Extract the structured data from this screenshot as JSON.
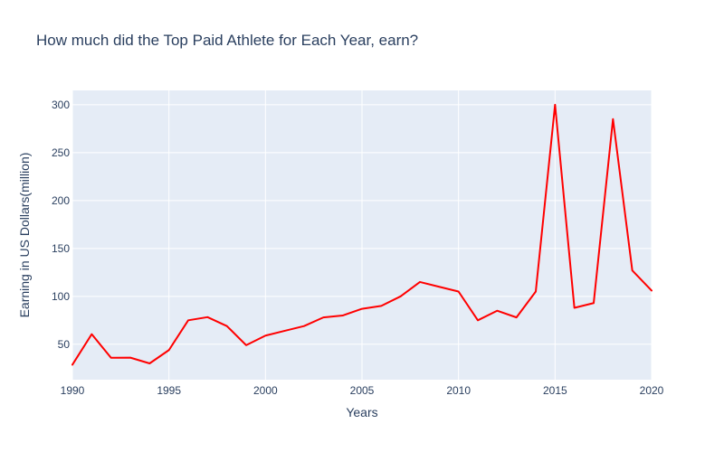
{
  "chart_data": {
    "type": "line",
    "title": "How much did the Top Paid Athlete for Each Year, earn?",
    "xlabel": "Years",
    "ylabel": "Earning in US Dollars(million)",
    "xlim": [
      1990,
      2020
    ],
    "ylim": [
      13,
      315
    ],
    "x_ticks": [
      1990,
      1995,
      2000,
      2005,
      2010,
      2015,
      2020
    ],
    "y_ticks": [
      50,
      100,
      150,
      200,
      250,
      300
    ],
    "grid": true,
    "legend": "none",
    "colors": {
      "plot_background": "#e5ecf6",
      "grid": "#ffffff",
      "line": "#ff0000",
      "text": "#2a3f5f"
    },
    "series": [
      {
        "x": [
          1990,
          1991,
          1992,
          1993,
          1994,
          1995,
          1996,
          1997,
          1998,
          1999,
          2000,
          2001,
          2002,
          2003,
          2004,
          2005,
          2006,
          2007,
          2008,
          2009,
          2010,
          2011,
          2012,
          2013,
          2014,
          2015,
          2016,
          2017,
          2018,
          2019,
          2020
        ],
        "y": [
          28.6,
          60.5,
          35.9,
          36,
          30,
          43.9,
          75,
          78.3,
          69,
          49,
          59,
          64,
          69,
          78,
          80,
          87,
          90,
          100,
          115,
          110,
          105,
          75,
          85,
          78,
          105,
          300,
          88,
          93,
          285,
          127,
          106
        ]
      }
    ]
  }
}
